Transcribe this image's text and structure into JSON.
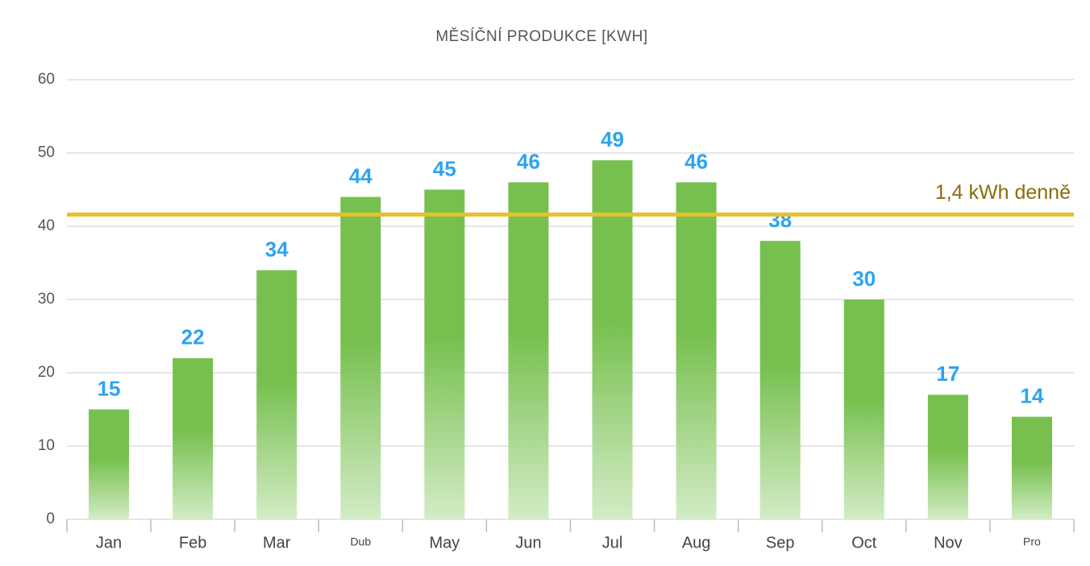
{
  "chart_data": {
    "type": "bar",
    "title": "MĚSÍČNÍ PRODUKCE [KWH]",
    "categories": [
      "Jan",
      "Feb",
      "Mar",
      "Dub",
      "May",
      "Jun",
      "Jul",
      "Aug",
      "Sep",
      "Oct",
      "Nov",
      "Pro"
    ],
    "values": [
      15,
      22,
      34,
      44,
      45,
      46,
      49,
      46,
      38,
      30,
      17,
      14
    ],
    "color": "#77c04f",
    "ylim": [
      0,
      60
    ],
    "yticks": [
      0,
      10,
      20,
      30,
      40,
      50,
      60
    ],
    "grid": true,
    "reference_line": {
      "value": 41.6,
      "label": "1,4 kWh denně",
      "color": "#e5c22d"
    }
  }
}
